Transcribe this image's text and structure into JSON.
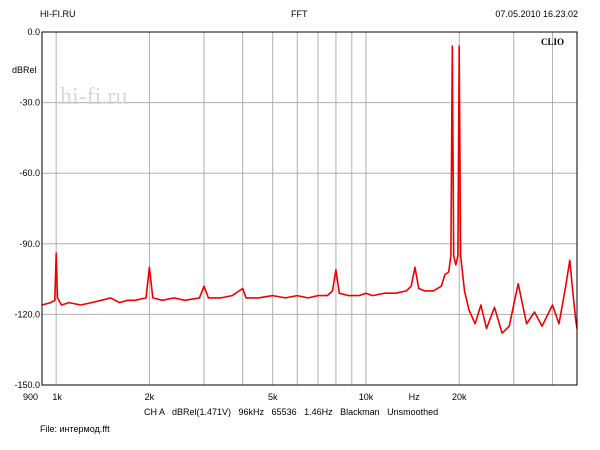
{
  "header": {
    "left": "HI-FI.RU",
    "center": "FFT",
    "right": "07.05.2010 16.23.02"
  },
  "footer": {
    "settings": "CH A   dBRel(1.471V)   96kHz   65536   1.46Hz   Blackman   Unsmoothed",
    "file": "File: интермод.fft"
  },
  "brand": "CLIO",
  "watermark": "hi-fi.ru",
  "colors": {
    "trace": "#ee0000",
    "grid": "#b0b0b0",
    "axis": "#000000"
  },
  "chart_data": {
    "type": "line",
    "title": "FFT",
    "xlabel": "Hz",
    "ylabel": "dBRel",
    "xscale": "log",
    "xlim": [
      900,
      48000
    ],
    "ylim": [
      -150,
      0
    ],
    "grid": true,
    "ytick_labels": [
      "0.0",
      "-30.0",
      "-60.0",
      "-90.0",
      "-120.0",
      "-150.0"
    ],
    "ytick_values": [
      0,
      -30,
      -60,
      -90,
      -120,
      -150
    ],
    "xtick_labels": [
      "900",
      "1k",
      "2k",
      "5k",
      "10k",
      "Hz",
      "20k"
    ],
    "xtick_values": [
      900,
      1000,
      2000,
      5000,
      10000,
      14300,
      20000
    ],
    "series": [
      {
        "color": "#ee0000",
        "points": [
          [
            900,
            -116
          ],
          [
            960,
            -115
          ],
          [
            990,
            -114
          ],
          [
            1000,
            -94
          ],
          [
            1010,
            -113
          ],
          [
            1040,
            -116
          ],
          [
            1100,
            -115
          ],
          [
            1200,
            -116
          ],
          [
            1300,
            -115
          ],
          [
            1400,
            -114
          ],
          [
            1500,
            -113
          ],
          [
            1600,
            -115
          ],
          [
            1700,
            -114
          ],
          [
            1800,
            -114
          ],
          [
            1950,
            -113
          ],
          [
            2000,
            -100
          ],
          [
            2050,
            -113
          ],
          [
            2200,
            -114
          ],
          [
            2400,
            -113
          ],
          [
            2600,
            -114
          ],
          [
            2900,
            -113
          ],
          [
            3000,
            -108
          ],
          [
            3100,
            -113
          ],
          [
            3400,
            -113
          ],
          [
            3700,
            -112
          ],
          [
            4000,
            -109
          ],
          [
            4100,
            -113
          ],
          [
            4500,
            -113
          ],
          [
            5000,
            -112
          ],
          [
            5500,
            -113
          ],
          [
            6000,
            -112
          ],
          [
            6500,
            -113
          ],
          [
            7000,
            -112
          ],
          [
            7500,
            -112
          ],
          [
            7800,
            -110
          ],
          [
            8000,
            -101
          ],
          [
            8200,
            -111
          ],
          [
            8800,
            -112
          ],
          [
            9500,
            -112
          ],
          [
            10000,
            -111
          ],
          [
            10500,
            -112
          ],
          [
            11500,
            -111
          ],
          [
            12500,
            -111
          ],
          [
            13500,
            -110
          ],
          [
            14000,
            -108
          ],
          [
            14400,
            -100
          ],
          [
            14800,
            -109
          ],
          [
            15500,
            -110
          ],
          [
            16500,
            -110
          ],
          [
            17500,
            -108
          ],
          [
            18000,
            -103
          ],
          [
            18500,
            -102
          ],
          [
            18800,
            -95
          ],
          [
            19000,
            -6
          ],
          [
            19200,
            -95
          ],
          [
            19500,
            -99
          ],
          [
            19800,
            -95
          ],
          [
            20000,
            -6
          ],
          [
            20200,
            -95
          ],
          [
            20800,
            -110
          ],
          [
            21500,
            -118
          ],
          [
            22500,
            -124
          ],
          [
            23500,
            -116
          ],
          [
            24500,
            -126
          ],
          [
            26000,
            -117
          ],
          [
            27500,
            -128
          ],
          [
            29000,
            -125
          ],
          [
            31000,
            -107
          ],
          [
            33000,
            -124
          ],
          [
            35000,
            -119
          ],
          [
            37000,
            -125
          ],
          [
            40000,
            -116
          ],
          [
            42000,
            -124
          ],
          [
            44000,
            -109
          ],
          [
            45500,
            -97
          ],
          [
            46500,
            -110
          ],
          [
            47500,
            -122
          ],
          [
            48000,
            -126
          ]
        ]
      }
    ]
  }
}
